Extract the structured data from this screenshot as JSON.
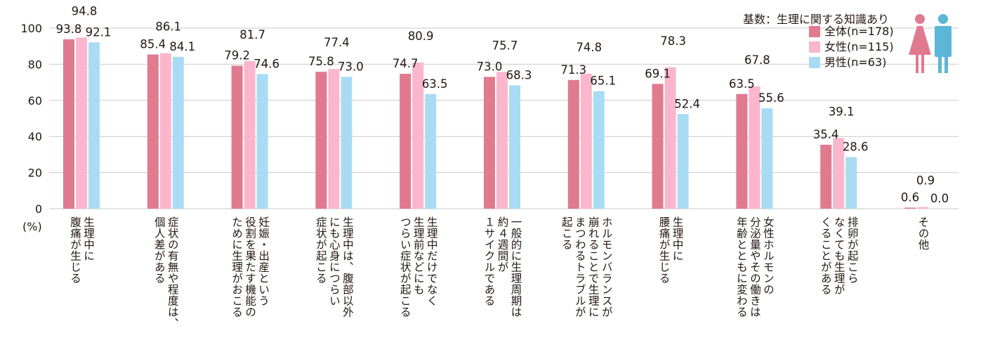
{
  "chart_data": {
    "type": "bar",
    "unit_label": "(%)",
    "ylim": [
      0,
      100
    ],
    "yticks": [
      0,
      20,
      40,
      60,
      80,
      100
    ],
    "legend_title": "基数：生理に関する知識あり",
    "legend_position": "top-right",
    "grid": true,
    "categories": [
      "生理中に\n腹痛が生じる",
      "症状の有無や程度は、\n個人差がある",
      "妊娠・出産という\n役割を果たす機能の\nために生理がおこる",
      "生理中は、腹部以外\nにも心身につらい\n症状が起こる",
      "生理中だけでなく\n生理前などにも\nつらい症状が起こる",
      "一般的に生理周期は\n約４週間が\n１サイクルである",
      "ホルモンバランスが\n崩れることで生理に\nまつわるトラブルが\n起こる",
      "生理中に\n腰痛が生じる",
      "女性ホルモンの\n分泌量やその働きは\n年齢とともに変わる",
      "排卵が起こら\nなくても生理が\nくることがある",
      "その他"
    ],
    "series": [
      {
        "name": "全体(n=178)",
        "color": "#e07a8f",
        "values": [
          93.8,
          85.4,
          79.2,
          75.8,
          74.7,
          73.0,
          71.3,
          69.1,
          63.5,
          35.4,
          0.6
        ]
      },
      {
        "name": "女性(n=115)",
        "color": "#f9b6cc",
        "values": [
          94.8,
          86.1,
          81.7,
          77.4,
          80.9,
          75.7,
          74.8,
          78.3,
          67.8,
          39.1,
          0.9
        ]
      },
      {
        "name": "男性(n=63)",
        "color": "#a9dcf4",
        "values": [
          92.1,
          84.1,
          74.6,
          73.0,
          63.5,
          68.3,
          65.1,
          52.4,
          55.6,
          28.6,
          0.0
        ]
      }
    ],
    "value_labels": [
      [
        "93.8",
        "85.4",
        "79.2",
        "75.8",
        "74.7",
        "73.0",
        "71.3",
        "69.1",
        "63.5",
        "35.4",
        "0.6"
      ],
      [
        "94.8",
        "86.1",
        "81.7",
        "77.4",
        "80.9",
        "75.7",
        "74.8",
        "78.3",
        "67.8",
        "39.1",
        "0.9"
      ],
      [
        "92.1",
        "84.1",
        "74.6",
        "73.0",
        "63.5",
        "68.3",
        "65.1",
        "52.4",
        "55.6",
        "28.6",
        "0.0"
      ]
    ]
  },
  "colors": {
    "female_icon": "#df7a91",
    "male_icon": "#5bb6d8",
    "grid": "#c9c9c9",
    "text": "#231815"
  },
  "icons": [
    "female-figure-icon",
    "male-figure-icon"
  ]
}
